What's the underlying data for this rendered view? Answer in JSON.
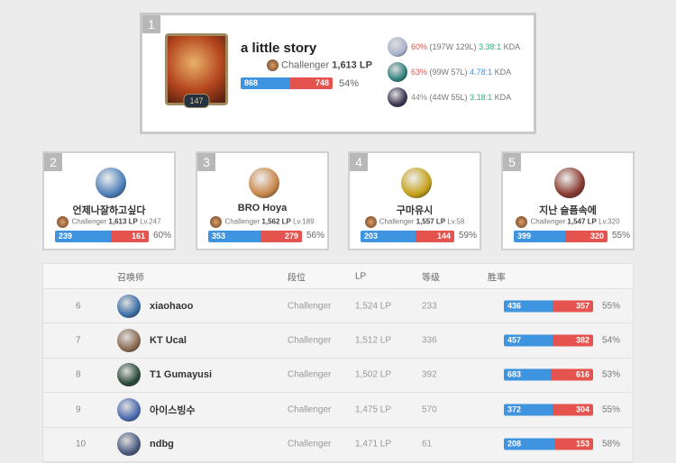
{
  "colors": {
    "win": "#3f94e0",
    "loss": "#e4534e"
  },
  "top1": {
    "rank": "1",
    "name": "a little story",
    "level": "147",
    "tier": "Challenger",
    "lp": "1,613 LP",
    "wins": 868,
    "losses": 748,
    "winrate": "54%",
    "champions": [
      {
        "wr": "60%",
        "record": "(197W 129L)",
        "kda": "3.38:1",
        "kda_suffix": "KDA",
        "wr_color": "#e4534e",
        "kda_color": "#2daf7f",
        "icon_color": "#a9b4d0"
      },
      {
        "wr": "63%",
        "record": "(99W 57L)",
        "kda": "4.78:1",
        "kda_suffix": "KDA",
        "wr_color": "#e4534e",
        "kda_color": "#3f94e0",
        "icon_color": "#2f7f7c"
      },
      {
        "wr": "44%",
        "record": "(44W 55L)",
        "kda": "3.18:1",
        "kda_suffix": "KDA",
        "wr_color": "#888888",
        "kda_color": "#2daf7f",
        "icon_color": "#3b3350"
      }
    ]
  },
  "cards": [
    {
      "rank": "2",
      "name": "언제나잘하고싶다",
      "tier": "Challenger",
      "lp": "1,613 LP",
      "level": "Lv.247",
      "wins": 239,
      "losses": 161,
      "winrate": "60%",
      "icon_color": "#4d7fb8"
    },
    {
      "rank": "3",
      "name": "BRO Hoya",
      "tier": "Challenger",
      "lp": "1,562 LP",
      "level": "Lv.189",
      "wins": 353,
      "losses": 279,
      "winrate": "56%",
      "icon_color": "#c9874a"
    },
    {
      "rank": "4",
      "name": "구마유시",
      "tier": "Challenger",
      "lp": "1,557 LP",
      "level": "Lv.58",
      "wins": 203,
      "losses": 144,
      "winrate": "59%",
      "icon_color": "#c4a21a"
    },
    {
      "rank": "5",
      "name": "지난 슬픔속에",
      "tier": "Challenger",
      "lp": "1,547 LP",
      "level": "Lv.320",
      "wins": 399,
      "losses": 320,
      "winrate": "55%",
      "icon_color": "#8a3a30"
    }
  ],
  "table": {
    "headers": {
      "summoner": "召唤师",
      "tier": "段位",
      "lp": "LP",
      "level": "等级",
      "winrate": "胜率"
    },
    "rows": [
      {
        "rank": "6",
        "name": "xiaohaoo",
        "tier": "Challenger",
        "lp": "1,524 LP",
        "level": "233",
        "wins": 436,
        "losses": 357,
        "winrate": "55%",
        "icon_color": "#3a6ea8"
      },
      {
        "rank": "7",
        "name": "KT Ucal",
        "tier": "Challenger",
        "lp": "1,512 LP",
        "level": "336",
        "wins": 457,
        "losses": 382,
        "winrate": "54%",
        "icon_color": "#8a6a50"
      },
      {
        "rank": "8",
        "name": "T1 Gumayusi",
        "tier": "Challenger",
        "lp": "1,502 LP",
        "level": "392",
        "wins": 683,
        "losses": 616,
        "winrate": "53%",
        "icon_color": "#2a4a3a"
      },
      {
        "rank": "9",
        "name": "아이스빙수",
        "tier": "Challenger",
        "lp": "1,475 LP",
        "level": "570",
        "wins": 372,
        "losses": 304,
        "winrate": "55%",
        "icon_color": "#4a6ab0"
      },
      {
        "rank": "10",
        "name": "ndbg",
        "tier": "Challenger",
        "lp": "1,471 LP",
        "level": "61",
        "wins": 208,
        "losses": 153,
        "winrate": "58%",
        "icon_color": "#4a5a80"
      }
    ]
  }
}
